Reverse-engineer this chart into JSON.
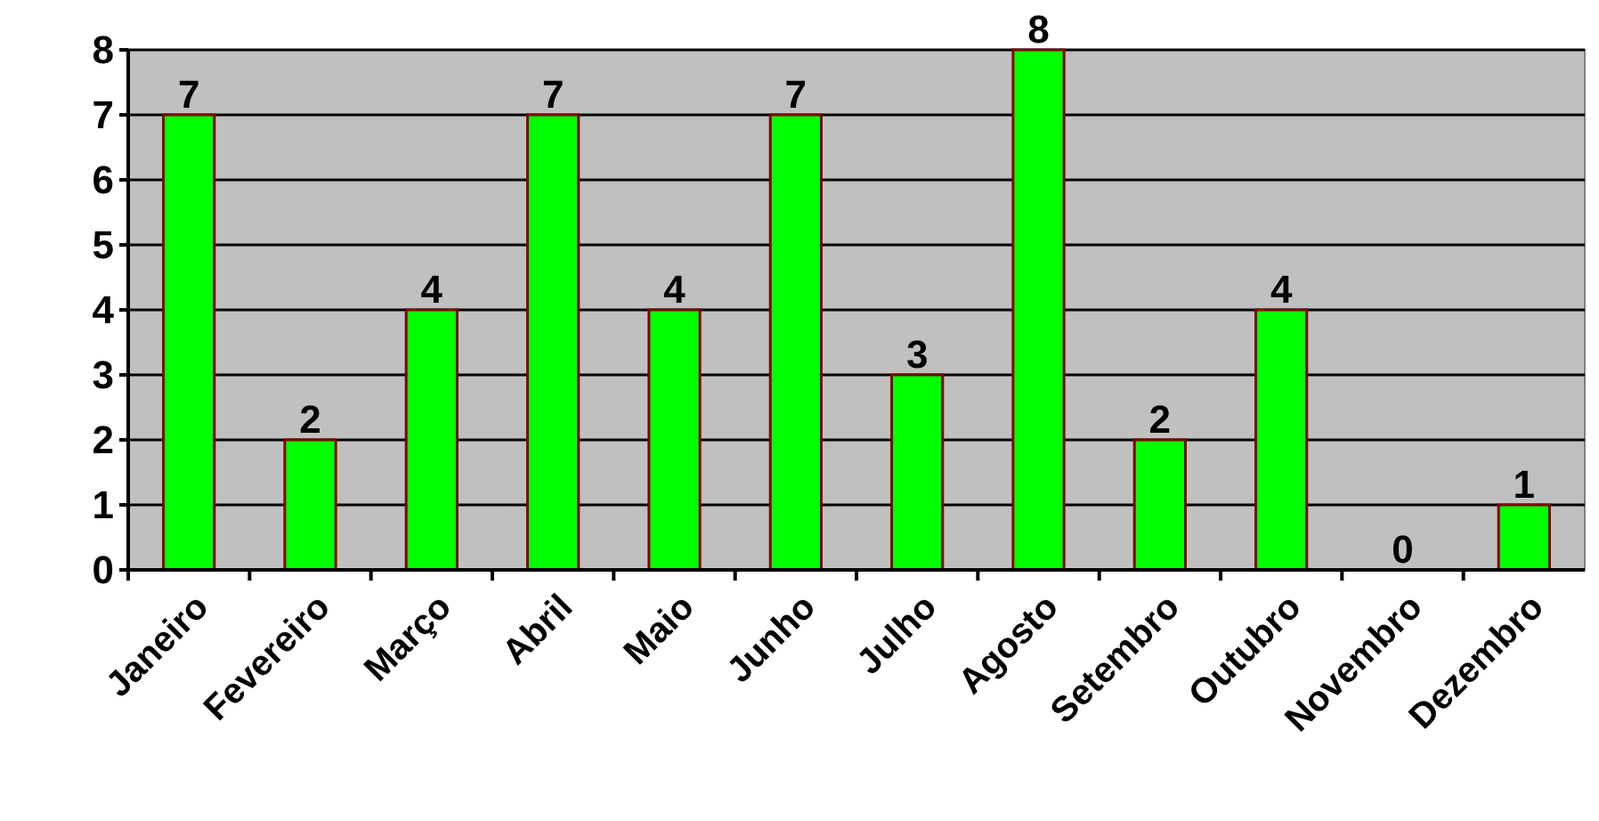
{
  "chart_data": {
    "type": "bar",
    "categories": [
      "Janeiro",
      "Fevereiro",
      "Março",
      "Abril",
      "Maio",
      "Junho",
      "Julho",
      "Agosto",
      "Setembro",
      "Outubro",
      "Novembro",
      "Dezembro"
    ],
    "values": [
      7,
      2,
      4,
      7,
      4,
      7,
      3,
      8,
      2,
      4,
      0,
      1
    ],
    "color": "#00ff00",
    "ylim": [
      0,
      8
    ],
    "yticks": [
      0,
      1,
      2,
      3,
      4,
      5,
      6,
      7,
      8
    ],
    "grid": "y",
    "data_labels": true
  }
}
